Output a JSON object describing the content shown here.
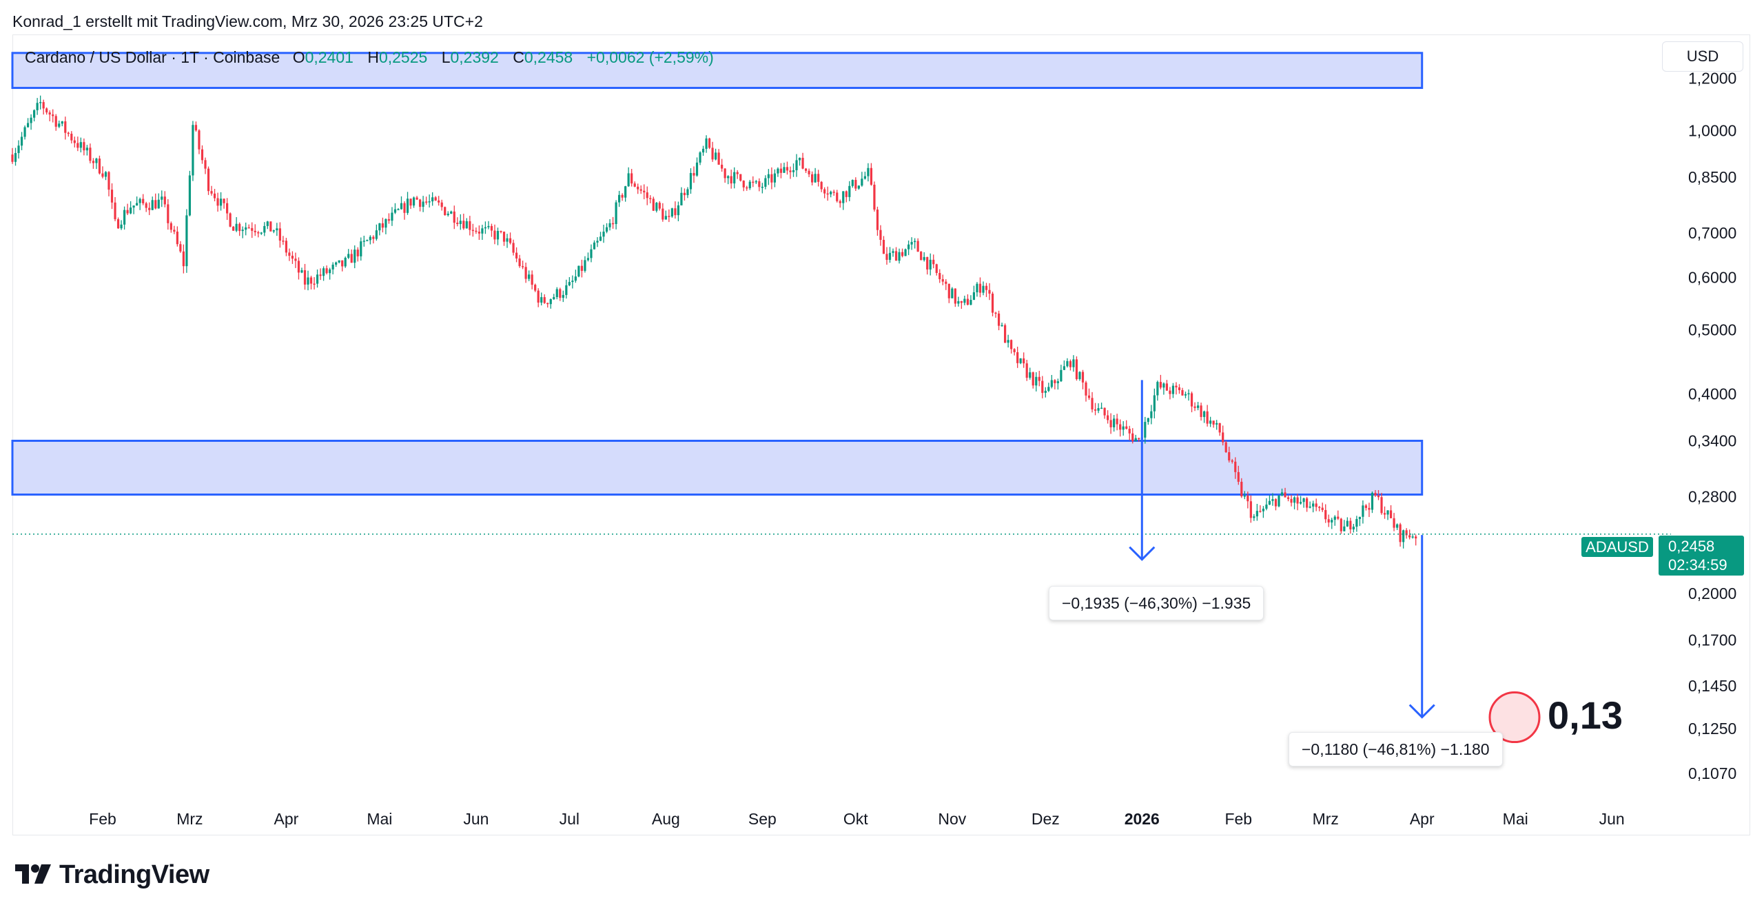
{
  "header": {
    "text": "Konrad_1 erstellt mit TradingView.com, Mrz 30, 2026 23:25 UTC+2"
  },
  "legend": {
    "title": "Cardano / US Dollar · 1T · Coinbase",
    "open_label": "O",
    "open": "0,2401",
    "high_label": "H",
    "high": "0,2525",
    "low_label": "L",
    "low": "0,2392",
    "close_label": "C",
    "close": "0,2458",
    "change": "+0,0062 (+2,59%)"
  },
  "currency": "USD",
  "ticker": "ADAUSD",
  "last_price": "0,2458",
  "countdown": "02:34:59",
  "measurements": [
    {
      "text": "−0,1935 (−46,30%) −1.935"
    },
    {
      "text": "−0,1180 (−46,81%) −1.180"
    }
  ],
  "target": "0,13",
  "logo": "TradingView",
  "colors": {
    "up": "#089981",
    "down": "#f23645",
    "zone_fill": "#d5dcfc",
    "zone_border": "#2962ff",
    "target_circle": "#f23645"
  },
  "chart_data": {
    "type": "candlestick",
    "title": "Cardano / US Dollar · 1T · Coinbase",
    "y_scale": "log",
    "ylim": [
      0.1,
      1.3
    ],
    "y_ticks": [
      1.2,
      1.0,
      0.85,
      0.7,
      0.6,
      0.5,
      0.4,
      0.34,
      0.28,
      0.2,
      0.17,
      0.145,
      0.125,
      0.107
    ],
    "y_tick_labels": [
      "1,2000",
      "1,0000",
      "0,8500",
      "0,7000",
      "0,6000",
      "0,5000",
      "0,4000",
      "0,3400",
      "0,2800",
      "0,2000",
      "0,1700",
      "0,1450",
      "0,1250",
      "0,1070"
    ],
    "x_ticks": [
      "2025-02-01",
      "2025-03-01",
      "2025-04-01",
      "2025-05-01",
      "2025-06-01",
      "2025-07-01",
      "2025-08-01",
      "2025-09-01",
      "2025-10-01",
      "2025-11-01",
      "2025-12-01",
      "2026-01-01",
      "2026-02-01",
      "2026-03-01",
      "2026-04-01",
      "2026-05-01",
      "2026-06-01"
    ],
    "x_tick_labels": [
      "Feb",
      "Mrz",
      "Apr",
      "Mai",
      "Jun",
      "Jul",
      "Aug",
      "Sep",
      "Okt",
      "Nov",
      "Dez",
      "2026",
      "Feb",
      "Mrz",
      "Apr",
      "Mai",
      "Jun"
    ],
    "xlim": [
      "2025-01-03",
      "2026-06-20"
    ],
    "zones": [
      {
        "from": "2025-01-03",
        "to": "2026-04-01",
        "low": 1.16,
        "high": 1.31
      },
      {
        "from": "2025-01-03",
        "to": "2026-04-01",
        "low": 0.282,
        "high": 0.34
      }
    ],
    "current_price": 0.2458,
    "measures": [
      {
        "date": "2026-01-01",
        "from": 0.42,
        "to": 0.225
      },
      {
        "date": "2026-04-01",
        "from": 0.245,
        "to": 0.13
      }
    ],
    "target_price": 0.13,
    "anchors": [
      [
        "2025-01-03",
        0.92
      ],
      [
        "2025-01-12",
        1.1
      ],
      [
        "2025-01-20",
        1.0
      ],
      [
        "2025-02-02",
        0.86
      ],
      [
        "2025-02-05",
        0.72
      ],
      [
        "2025-02-10",
        0.77
      ],
      [
        "2025-02-20",
        0.78
      ],
      [
        "2025-02-27",
        0.63
      ],
      [
        "2025-03-02",
        1.02
      ],
      [
        "2025-03-07",
        0.83
      ],
      [
        "2025-03-15",
        0.72
      ],
      [
        "2025-03-28",
        0.71
      ],
      [
        "2025-04-07",
        0.59
      ],
      [
        "2025-04-20",
        0.63
      ],
      [
        "2025-05-01",
        0.71
      ],
      [
        "2025-05-12",
        0.79
      ],
      [
        "2025-05-20",
        0.77
      ],
      [
        "2025-06-01",
        0.71
      ],
      [
        "2025-06-10",
        0.69
      ],
      [
        "2025-06-22",
        0.55
      ],
      [
        "2025-07-01",
        0.58
      ],
      [
        "2025-07-14",
        0.72
      ],
      [
        "2025-07-20",
        0.85
      ],
      [
        "2025-08-02",
        0.73
      ],
      [
        "2025-08-14",
        0.95
      ],
      [
        "2025-08-20",
        0.86
      ],
      [
        "2025-08-31",
        0.82
      ],
      [
        "2025-09-12",
        0.9
      ],
      [
        "2025-09-25",
        0.79
      ],
      [
        "2025-10-05",
        0.86
      ],
      [
        "2025-10-10",
        0.64
      ],
      [
        "2025-10-20",
        0.67
      ],
      [
        "2025-11-04",
        0.54
      ],
      [
        "2025-11-11",
        0.59
      ],
      [
        "2025-11-20",
        0.46
      ],
      [
        "2025-12-01",
        0.4
      ],
      [
        "2025-12-09",
        0.45
      ],
      [
        "2025-12-17",
        0.38
      ],
      [
        "2025-12-31",
        0.34
      ],
      [
        "2026-01-06",
        0.41
      ],
      [
        "2026-01-15",
        0.4
      ],
      [
        "2026-01-26",
        0.35
      ],
      [
        "2026-02-01",
        0.29
      ],
      [
        "2026-02-06",
        0.26
      ],
      [
        "2026-02-14",
        0.28
      ],
      [
        "2026-02-24",
        0.27
      ],
      [
        "2026-03-07",
        0.25
      ],
      [
        "2026-03-17",
        0.28
      ],
      [
        "2026-03-25",
        0.245
      ],
      [
        "2026-03-30",
        0.2458
      ]
    ]
  }
}
